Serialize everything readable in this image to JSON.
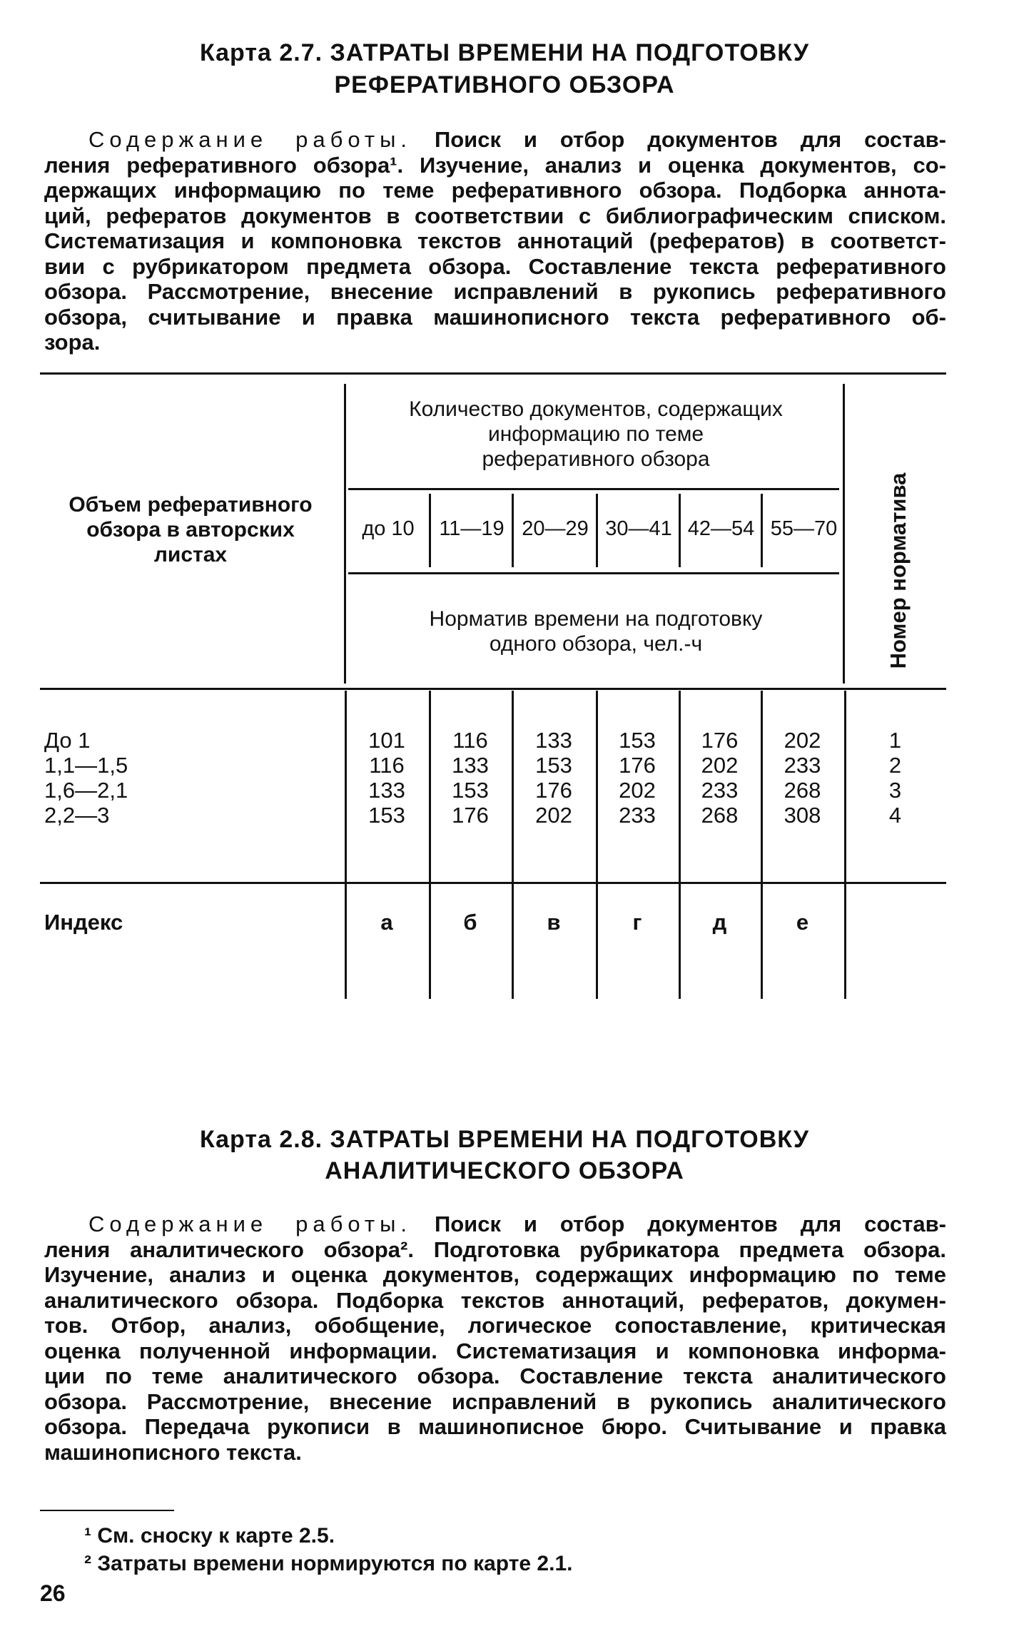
{
  "card1": {
    "title_line1": "Карта 2.7. ЗАТРАТЫ ВРЕМЕНИ НА ПОДГОТОВКУ",
    "title_line2": "РЕФЕРАТИВНОГО ОБЗОРА",
    "content_label": "Содержание работы.",
    "lines": [
      "Поиск и отбор документов для состав-",
      "ления реферативного обзора¹. Изучение, анализ и оценка документов, со-",
      "держащих информацию по теме реферативного обзора. Подборка аннота-",
      "ций, рефератов документов в соответствии с библиографическим списком.",
      "Систематизация и компоновка текстов аннотаций (рефератов) в соответст-",
      "вии с рубрикатором предмета обзора. Составление текста реферативного",
      "обзора. Рассмотрение, внесение исправлений в рукопись реферативного",
      "обзора, считывание и правка машинописного текста реферативного об-",
      "зора."
    ],
    "table": {
      "row_header": [
        "Объем реферативного",
        "обзора в авторских",
        "листах"
      ],
      "group_header": [
        "Количество документов, содержащих",
        "информацию по теме",
        "реферативного обзора"
      ],
      "ranges": [
        "до 10",
        "11—19",
        "20—29",
        "30—41",
        "42—54",
        "55—70"
      ],
      "norm_header": [
        "Норматив времени на подготовку",
        "одного обзора, чел.-ч"
      ],
      "number_header": "Номер норматива",
      "rows": [
        {
          "label": "До 1",
          "values": [
            "101",
            "116",
            "133",
            "153",
            "176",
            "202"
          ],
          "num": "1"
        },
        {
          "label": "1,1—1,5",
          "values": [
            "116",
            "133",
            "153",
            "176",
            "202",
            "233"
          ],
          "num": "2"
        },
        {
          "label": "1,6—2,1",
          "values": [
            "133",
            "153",
            "176",
            "202",
            "233",
            "268"
          ],
          "num": "3"
        },
        {
          "label": "2,2—3",
          "values": [
            "153",
            "176",
            "202",
            "233",
            "268",
            "308"
          ],
          "num": "4"
        }
      ],
      "index_label": "Индекс",
      "index": [
        "а",
        "б",
        "в",
        "г",
        "д",
        "е"
      ]
    }
  },
  "card2": {
    "title_line1": "Карта 2.8. ЗАТРАТЫ ВРЕМЕНИ НА ПОДГОТОВКУ",
    "title_line2": "АНАЛИТИЧЕСКОГО ОБЗОРА",
    "content_label": "Содержание работы.",
    "lines": [
      "Поиск и отбор документов для состав-",
      "ления аналитического обзора². Подготовка рубрикатора предмета обзора.",
      "Изучение, анализ и оценка документов, содержащих информацию по теме",
      "аналитического обзора. Подборка текстов аннотаций, рефератов, докумен-",
      "тов. Отбор, анализ, обобщение, логическое сопоставление, критическая",
      "оценка полученной информации. Систематизация и компоновка информа-",
      "ции по теме аналитического обзора. Составление текста аналитического",
      "обзора. Рассмотрение, внесение исправлений в рукопись аналитического",
      "обзора. Передача рукописи в машинописное бюро. Считывание и правка",
      "машинописного текста."
    ]
  },
  "footnotes": [
    "¹ См. сноску к карте 2.5.",
    "² Затраты времени нормируются по карте 2.1."
  ],
  "page_number": "26"
}
